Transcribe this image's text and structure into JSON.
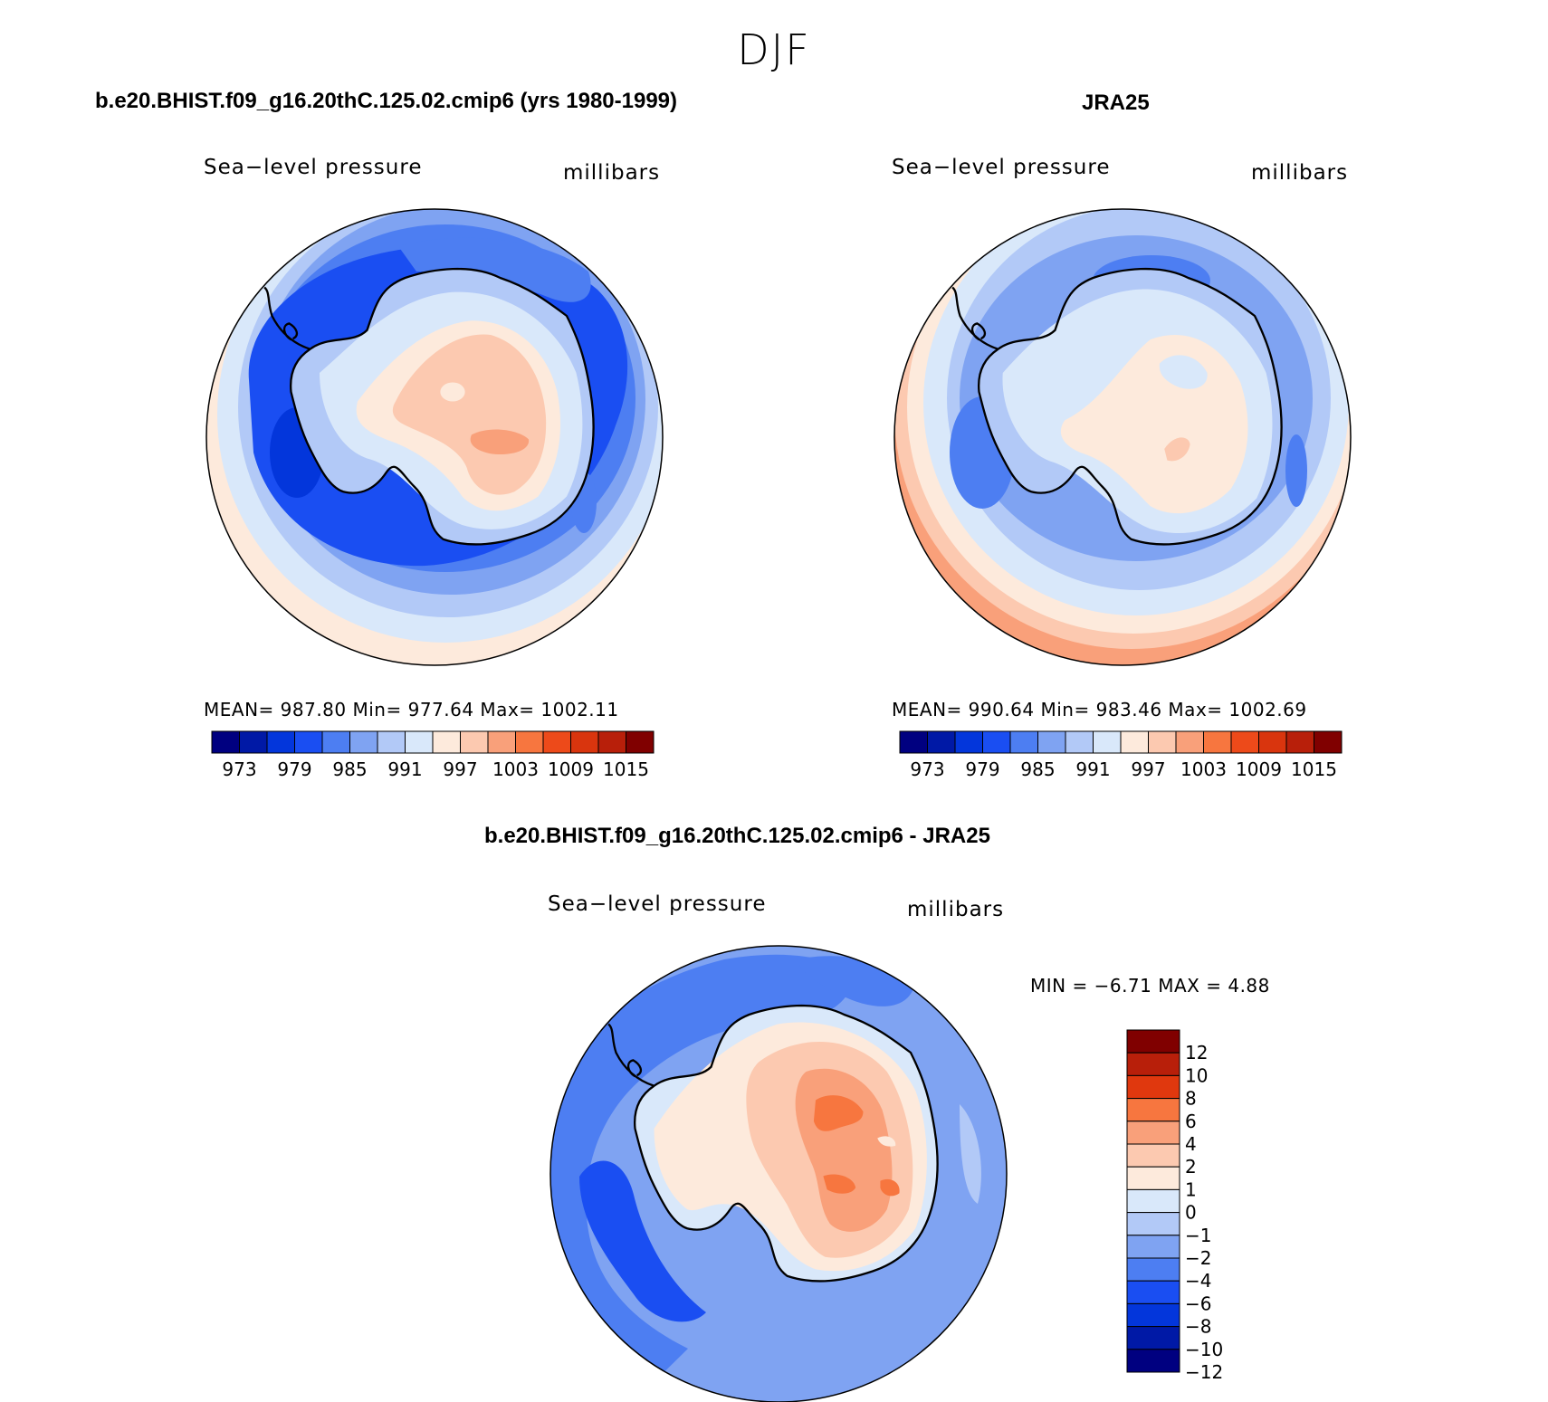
{
  "season": "DJF",
  "panels": [
    {
      "title": "b.e20.BHIST.f09_g16.20thC.125.02.cmip6 (yrs 1980-1999)",
      "left_label": "Sea−level pressure",
      "right_label": "millibars",
      "stats": "MEAN=  987.80    Min=  977.64    Max=  1002.11"
    },
    {
      "title": "JRA25",
      "left_label": "Sea−level pressure",
      "right_label": "millibars",
      "stats": "MEAN=  990.64    Min=  983.46    Max=  1002.69"
    },
    {
      "title": "b.e20.BHIST.f09_g16.20thC.125.02.cmip6 - JRA25",
      "left_label": "Sea−level pressure",
      "right_label": "millibars",
      "stats": "MIN =   −6.71  MAX =     4.88"
    }
  ],
  "colorbar_abs": {
    "colors": [
      "#000080",
      "#0019a6",
      "#0336db",
      "#1a4ef2",
      "#4d7ef2",
      "#7fa3f2",
      "#b2c9f7",
      "#d9e8fa",
      "#fdeadc",
      "#fcc9b0",
      "#f9a07a",
      "#f7763f",
      "#ed4a1a",
      "#d9350e",
      "#b81f0a",
      "#800000"
    ],
    "tick_labels": [
      "973",
      "979",
      "985",
      "991",
      "997",
      "1003",
      "1009",
      "1015"
    ]
  },
  "colorbar_diff": {
    "colors_top_to_bottom": [
      "#800000",
      "#b81f0a",
      "#e0380e",
      "#f7763f",
      "#f9a07a",
      "#fcc9b0",
      "#fdeadc",
      "#d9e8fa",
      "#b2c9f7",
      "#7fa3f2",
      "#4d7ef2",
      "#1a4ef2",
      "#0336db",
      "#0019a6",
      "#000080"
    ],
    "tick_labels": [
      "12",
      "10",
      "8",
      "6",
      "4",
      "2",
      "1",
      "0",
      "−1",
      "−2",
      "−4",
      "−6",
      "−8",
      "−10",
      "−12"
    ]
  },
  "map_colors": {
    "border": "#000000",
    "outline_coast": "#000000"
  }
}
